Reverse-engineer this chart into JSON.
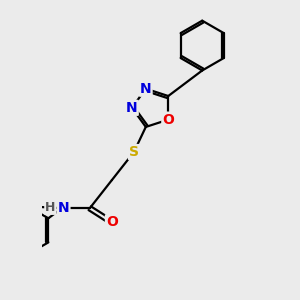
{
  "bg_color": "#ebebeb",
  "bond_color": "#000000",
  "atom_colors": {
    "N": "#0000dd",
    "O": "#ee0000",
    "S": "#ccaa00",
    "C": "#000000",
    "H": "#555555"
  },
  "font_size": 10,
  "line_width": 1.6,
  "dbo": 0.055
}
